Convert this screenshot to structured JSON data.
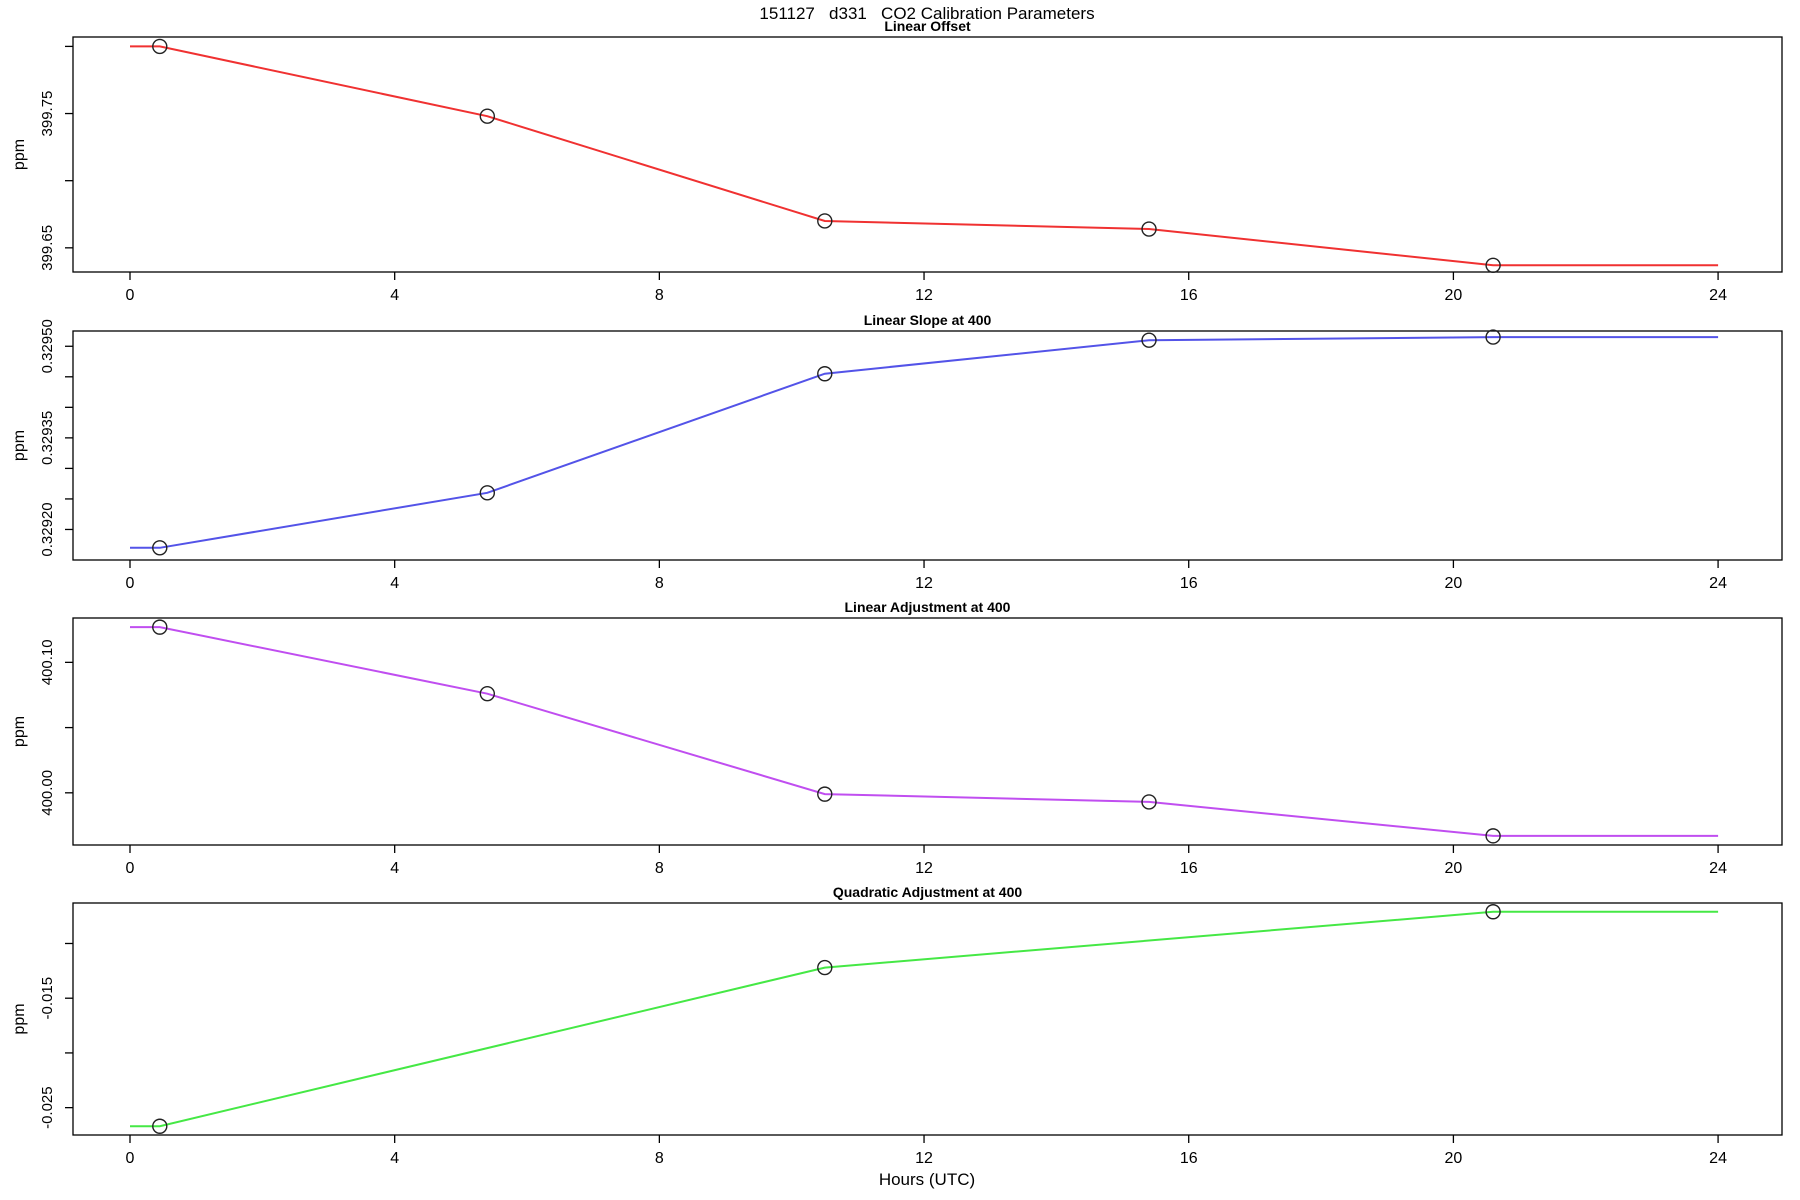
{
  "header": {
    "title": "151127   d331   CO2 Calibration Parameters"
  },
  "axes": {
    "x_label": "Hours (UTC)",
    "y_label": "ppm",
    "x_ticks": [
      0,
      4,
      8,
      12,
      16,
      20,
      24
    ],
    "x_tick_labels": [
      "0",
      "4",
      "8",
      "12",
      "16",
      "20",
      "24"
    ],
    "x_range": [
      -0.87,
      24.95
    ]
  },
  "chart_data": [
    {
      "type": "line",
      "title": "Linear Offset",
      "color": "#f03131",
      "marker": "open-circle",
      "x": [
        0.45,
        5.4,
        10.5,
        15.4,
        20.6
      ],
      "y": [
        399.8,
        399.748,
        399.67,
        399.664,
        399.637
      ],
      "line_start_x": 0,
      "line_end_x": 24,
      "ylabel": "ppm",
      "ylim": [
        399.632,
        399.807
      ],
      "y_ticks": [
        399.65,
        399.7,
        399.75,
        399.8
      ],
      "y_tick_labels": [
        "399.65",
        "",
        "399.75",
        ""
      ]
    },
    {
      "type": "line",
      "title": "Linear Slope at 400",
      "color": "#5353e8",
      "marker": "open-circle",
      "x": [
        0.45,
        5.4,
        10.5,
        15.4,
        20.6
      ],
      "y": [
        0.32917,
        0.32926,
        0.329455,
        0.32951,
        0.329515
      ],
      "line_start_x": 0,
      "line_end_x": 24,
      "ylabel": "ppm",
      "ylim": [
        0.32915,
        0.329525
      ],
      "y_ticks": [
        0.3292,
        0.32925,
        0.3293,
        0.32935,
        0.3294,
        0.32945,
        0.3295
      ],
      "y_tick_labels": [
        "0.32920",
        "",
        "",
        "0.32935",
        "",
        "",
        "0.32950"
      ]
    },
    {
      "type": "line",
      "title": "Linear Adjustment at 400",
      "color": "#c04ef0",
      "marker": "open-circle",
      "x": [
        0.45,
        5.4,
        10.5,
        15.4,
        20.6
      ],
      "y": [
        400.127,
        400.076,
        399.999,
        399.993,
        399.967
      ],
      "line_start_x": 0,
      "line_end_x": 24,
      "ylabel": "ppm",
      "ylim": [
        399.96,
        400.134
      ],
      "y_ticks": [
        400.0,
        400.05,
        400.1
      ],
      "y_tick_labels": [
        "400.00",
        "",
        "400.10"
      ]
    },
    {
      "type": "line",
      "title": "Quadratic Adjustment at 400",
      "color": "#45e845",
      "marker": "open-circle",
      "x": [
        0.45,
        10.5,
        20.6
      ],
      "y": [
        -0.0267,
        -0.0122,
        -0.0071
      ],
      "line_start_x": 0,
      "line_end_x": 24,
      "ylabel": "ppm",
      "ylim": [
        -0.0275,
        -0.0063
      ],
      "y_ticks": [
        -0.025,
        -0.02,
        -0.015,
        -0.01
      ],
      "y_tick_labels": [
        "-0.025",
        "",
        "-0.015",
        ""
      ]
    }
  ]
}
